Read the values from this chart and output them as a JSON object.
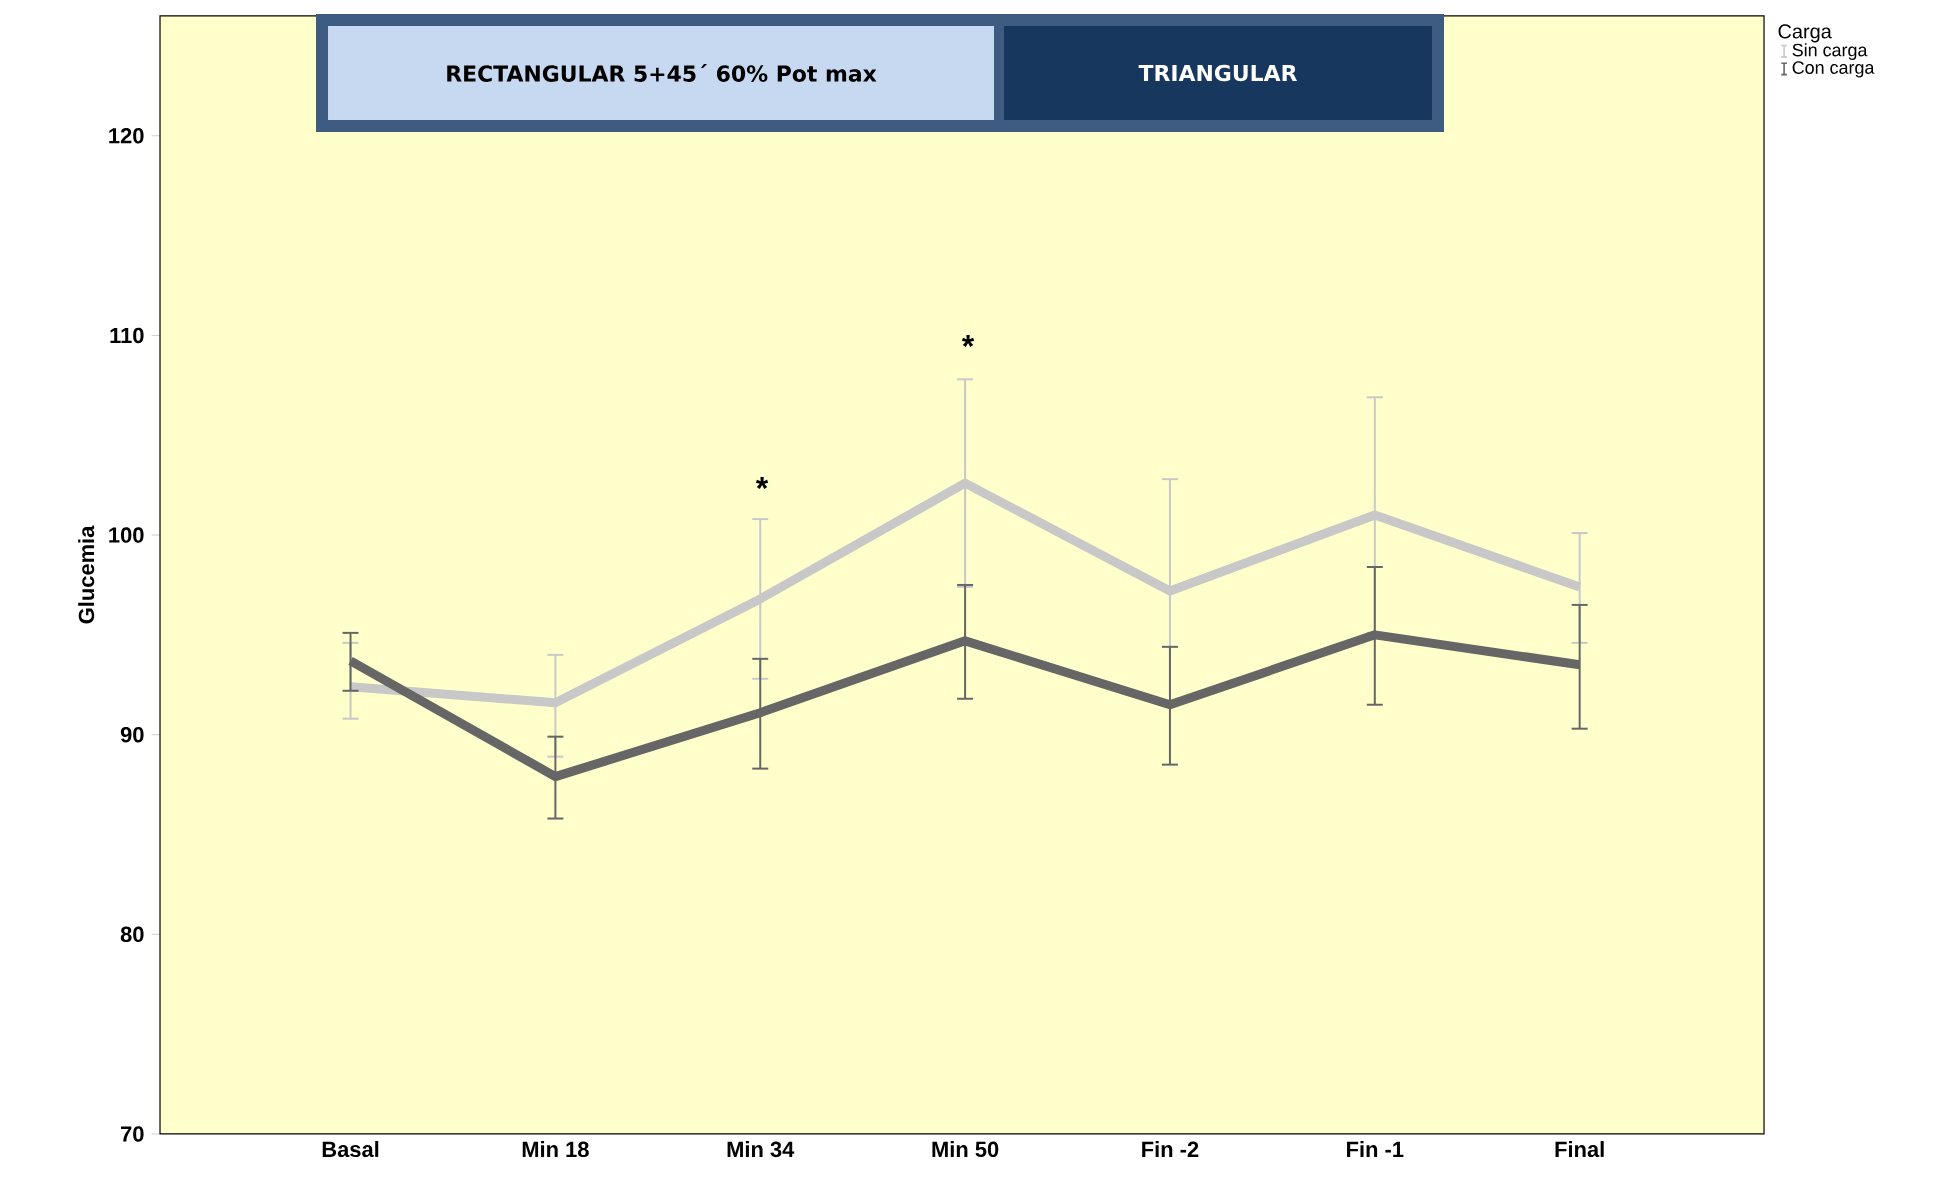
{
  "chart_data": {
    "type": "line",
    "ylabel": "Glucemia",
    "legend_title": "Carga",
    "legend": "top right",
    "grid": false,
    "marker": "none",
    "line_style": "solid",
    "categories": [
      "Basal",
      "Min 18",
      "Min 34",
      "Min 50",
      "Fin -2",
      "Fin -1",
      "Final"
    ],
    "ylim": [
      70,
      126
    ],
    "yticks": [
      70,
      80,
      90,
      100,
      110,
      120
    ],
    "series": [
      {
        "name": "Sin carga",
        "color": "#c8c8c8",
        "values": [
          92.4,
          91.6,
          96.8,
          102.6,
          97.2,
          101.0,
          97.4
        ],
        "errors": [
          [
            90.8,
            94.6
          ],
          [
            88.9,
            94.0
          ],
          [
            92.8,
            100.8
          ],
          [
            97.4,
            107.8
          ],
          [
            91.5,
            102.8
          ],
          [
            95.1,
            106.9
          ],
          [
            94.6,
            100.1
          ]
        ]
      },
      {
        "name": "Con carga",
        "color": "#666666",
        "values": [
          93.7,
          87.9,
          91.1,
          94.7,
          91.5,
          95.0,
          93.5
        ],
        "errors": [
          [
            92.2,
            95.1
          ],
          [
            85.8,
            89.9
          ],
          [
            88.3,
            93.8
          ],
          [
            91.8,
            97.5
          ],
          [
            88.5,
            94.4
          ],
          [
            91.5,
            98.4
          ],
          [
            90.3,
            96.5
          ]
        ]
      }
    ],
    "annotations": [
      "RECTANGULAR  5+45´  60% Pot max",
      "TRIANGULAR",
      "*",
      "*"
    ]
  }
}
